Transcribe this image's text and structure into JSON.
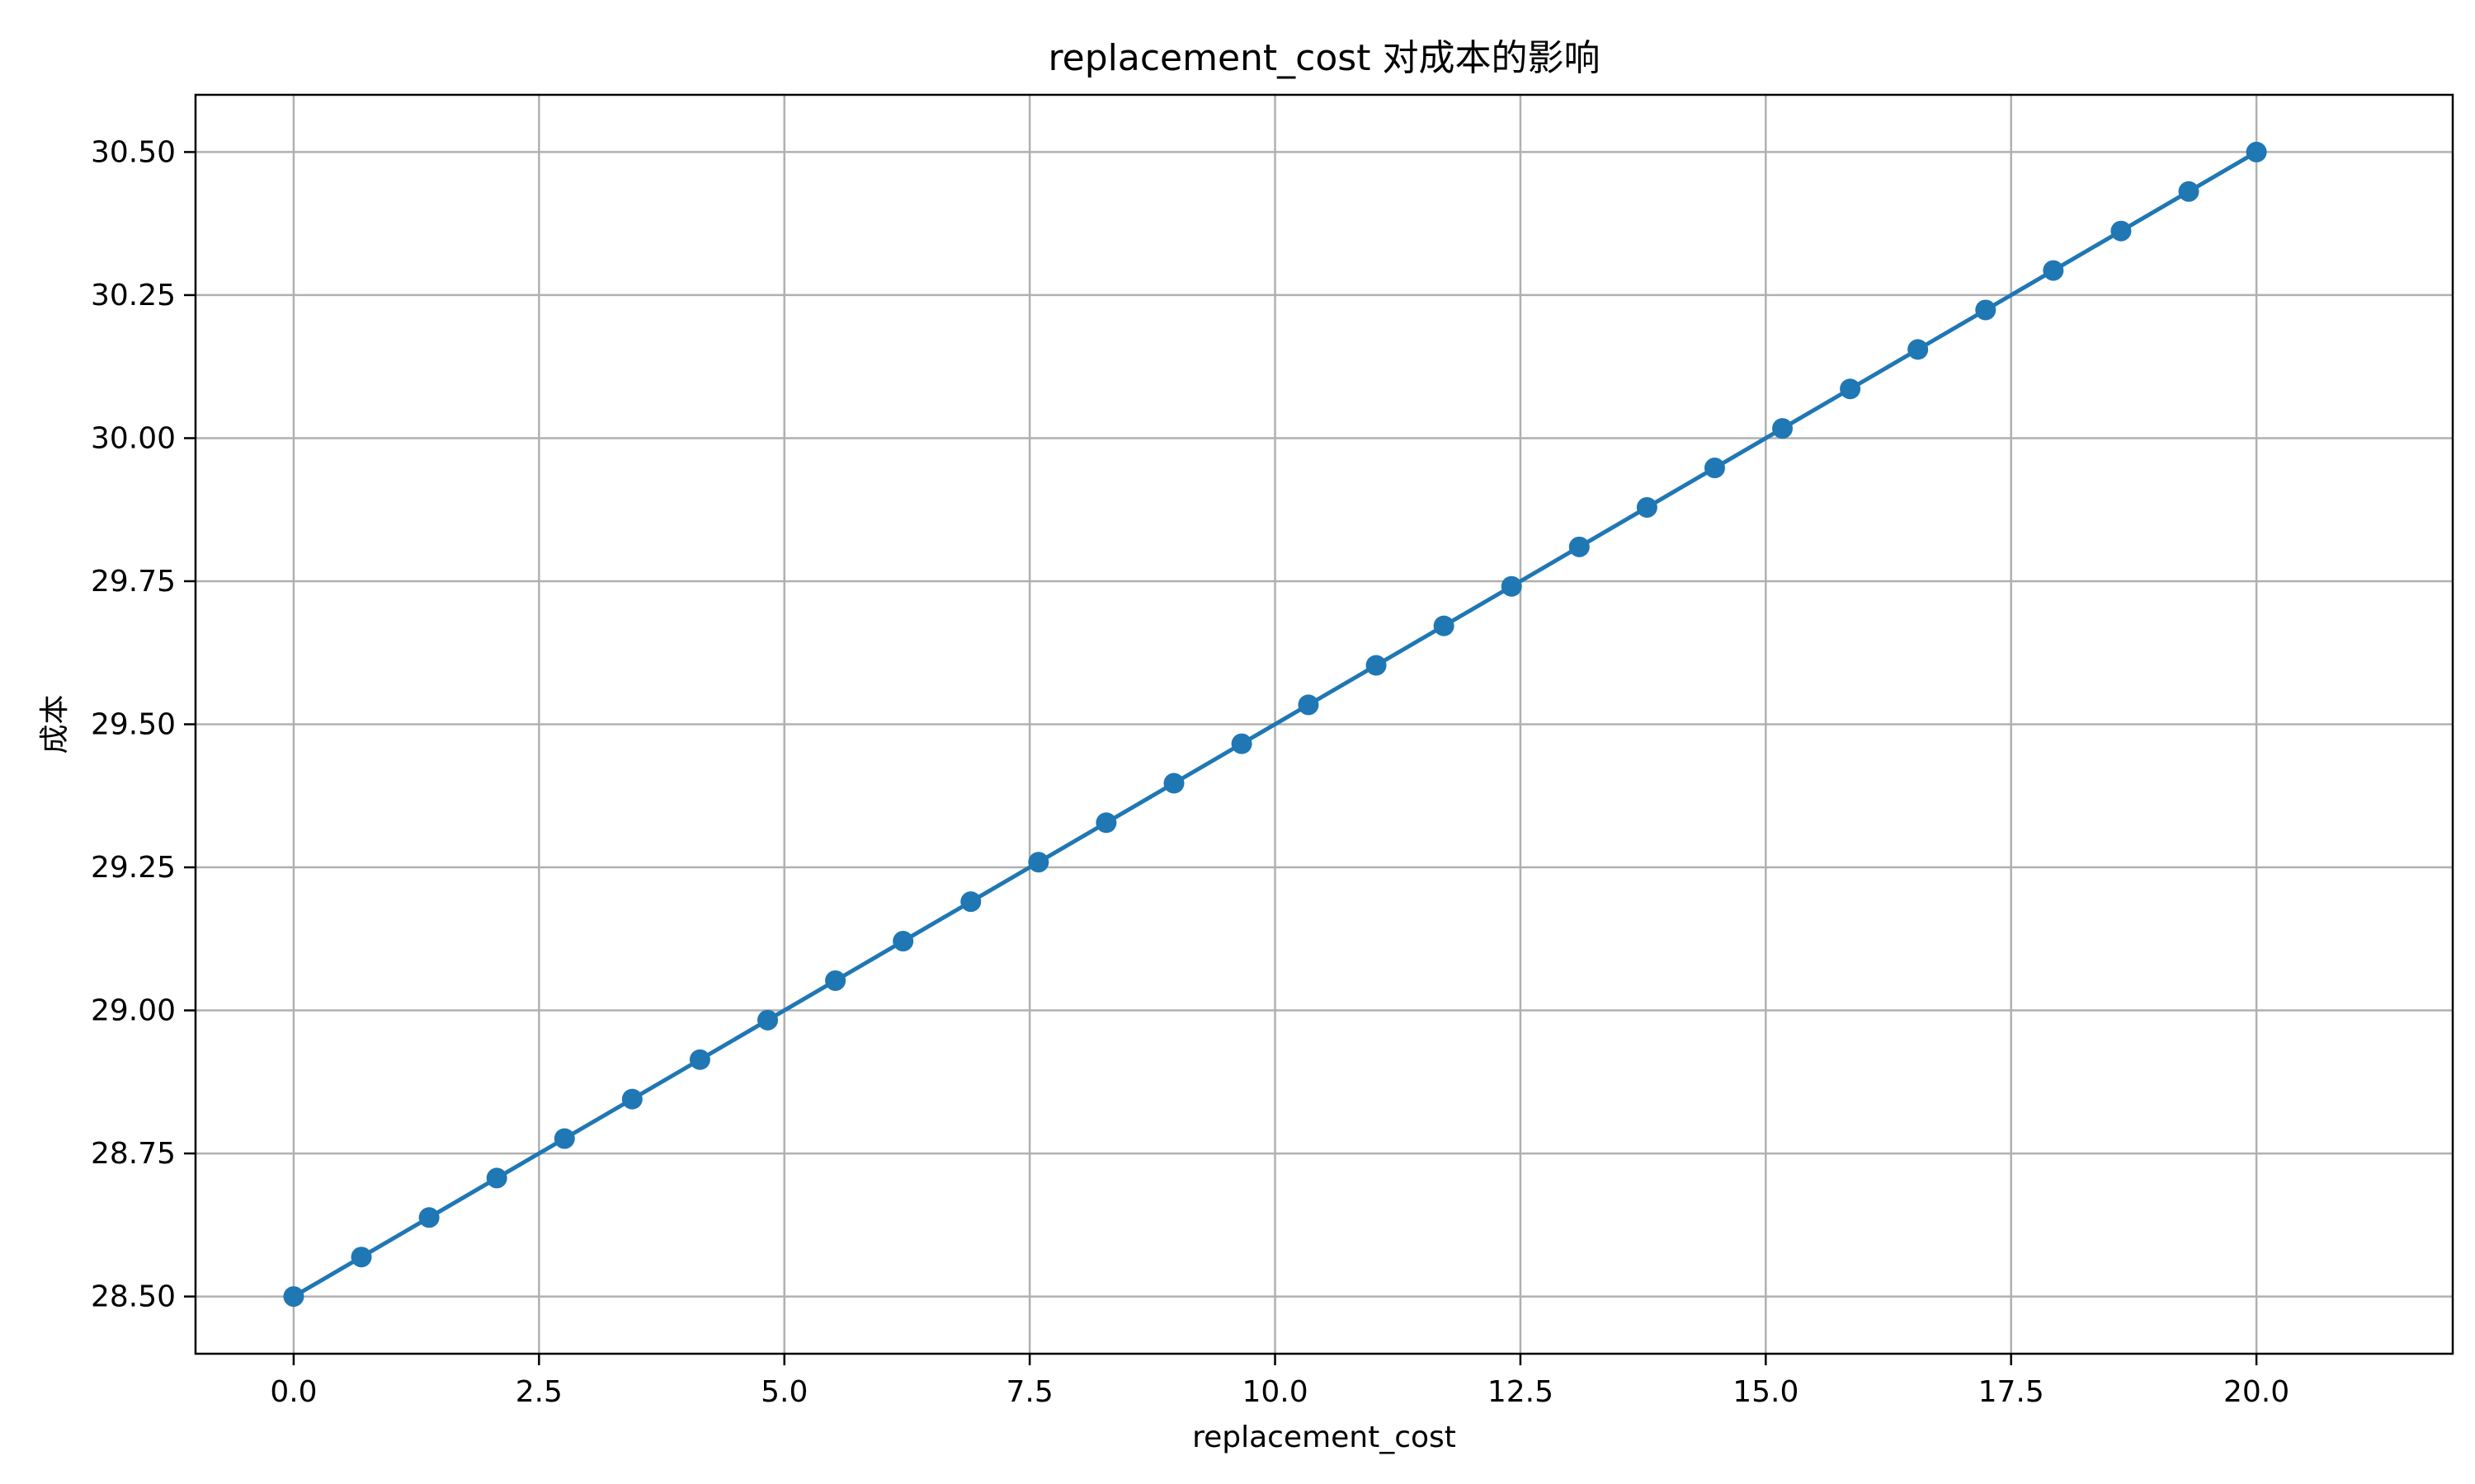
{
  "chart_data": {
    "type": "line",
    "title": "replacement_cost 对成本的影响",
    "xlabel": "replacement_cost",
    "ylabel": "成本",
    "xlim": [
      -1,
      22
    ],
    "ylim": [
      28.4,
      30.6
    ],
    "xticks": [
      "0.0",
      "2.5",
      "5.0",
      "7.5",
      "10.0",
      "12.5",
      "15.0",
      "17.5",
      "20.0"
    ],
    "yticks": [
      "28.50",
      "28.75",
      "29.00",
      "29.25",
      "29.50",
      "29.75",
      "30.00",
      "30.25",
      "30.50"
    ],
    "grid": true,
    "series": [
      {
        "color": "#1f77b4",
        "marker": "circle",
        "x": [
          0.0,
          0.69,
          1.38,
          2.07,
          2.76,
          3.45,
          4.14,
          4.83,
          5.52,
          6.21,
          6.9,
          7.59,
          8.28,
          8.97,
          9.66,
          10.34,
          11.03,
          11.72,
          12.41,
          13.1,
          13.79,
          14.48,
          15.17,
          15.86,
          16.55,
          17.24,
          17.93,
          18.62,
          19.31,
          20.0
        ],
        "values": [
          28.5,
          28.569,
          28.638,
          28.707,
          28.776,
          28.845,
          28.914,
          28.983,
          29.052,
          29.121,
          29.19,
          29.259,
          29.328,
          29.397,
          29.466,
          29.534,
          29.603,
          29.672,
          29.741,
          29.81,
          29.879,
          29.948,
          30.017,
          30.086,
          30.155,
          30.224,
          30.293,
          30.362,
          30.431,
          30.5
        ]
      }
    ]
  }
}
